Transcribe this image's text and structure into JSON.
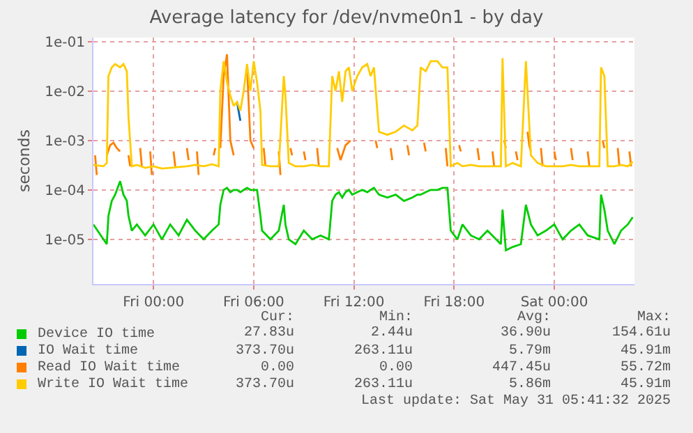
{
  "chart_data": {
    "type": "line",
    "title": "Average latency for /dev/nvme0n1 - by day",
    "ylabel": "seconds",
    "x": [
      "2025-05-29T20:24",
      "2025-05-29T21:00",
      "2025-05-29T21:12",
      "2025-05-29T21:18",
      "2025-05-29T21:30",
      "2025-05-29T21:42",
      "2025-05-29T22:00",
      "2025-05-29T22:12",
      "2025-05-29T22:24",
      "2025-05-29T22:30",
      "2025-05-29T22:42",
      "2025-05-29T23:00",
      "2025-05-29T23:30",
      "2025-05-30T00:00",
      "2025-05-30T00:30",
      "2025-05-30T01:00",
      "2025-05-30T01:30",
      "2025-05-30T02:00",
      "2025-05-30T02:30",
      "2025-05-30T03:00",
      "2025-05-30T03:30",
      "2025-05-30T03:54",
      "2025-05-30T04:00",
      "2025-05-30T04:12",
      "2025-05-30T04:24",
      "2025-05-30T04:36",
      "2025-05-30T04:48",
      "2025-05-30T05:00",
      "2025-05-30T05:12",
      "2025-05-30T05:24",
      "2025-05-30T05:36",
      "2025-05-30T05:48",
      "2025-05-30T06:00",
      "2025-05-30T06:12",
      "2025-05-30T06:24",
      "2025-05-30T06:30",
      "2025-05-30T07:00",
      "2025-05-30T07:30",
      "2025-05-30T07:48",
      "2025-05-30T07:54",
      "2025-05-30T08:06",
      "2025-05-30T08:30",
      "2025-05-30T09:00",
      "2025-05-30T09:30",
      "2025-05-30T10:00",
      "2025-05-30T10:30",
      "2025-05-30T10:42",
      "2025-05-30T10:54",
      "2025-05-30T11:06",
      "2025-05-30T11:18",
      "2025-05-30T11:30",
      "2025-05-30T11:42",
      "2025-05-30T11:54",
      "2025-05-30T12:12",
      "2025-05-30T12:30",
      "2025-05-30T12:48",
      "2025-05-30T13:00",
      "2025-05-30T13:12",
      "2025-05-30T13:30",
      "2025-05-30T14:00",
      "2025-05-30T14:30",
      "2025-05-30T15:00",
      "2025-05-30T15:30",
      "2025-05-30T15:48",
      "2025-05-30T16:00",
      "2025-05-30T16:18",
      "2025-05-30T16:36",
      "2025-05-30T17:00",
      "2025-05-30T17:18",
      "2025-05-30T17:36",
      "2025-05-30T17:48",
      "2025-05-30T18:12",
      "2025-05-30T18:30",
      "2025-05-30T19:00",
      "2025-05-30T19:30",
      "2025-05-30T20:00",
      "2025-05-30T20:48",
      "2025-05-30T20:54",
      "2025-05-30T21:06",
      "2025-05-30T21:30",
      "2025-05-30T22:00",
      "2025-05-30T22:18",
      "2025-05-30T22:36",
      "2025-05-30T23:00",
      "2025-05-30T23:30",
      "2025-05-31T00:00",
      "2025-05-31T00:30",
      "2025-05-31T01:00",
      "2025-05-31T01:30",
      "2025-05-31T02:00",
      "2025-05-31T02:42",
      "2025-05-31T02:48",
      "2025-05-31T03:00",
      "2025-05-31T03:12",
      "2025-05-31T03:36",
      "2025-05-31T04:00",
      "2025-05-31T04:24",
      "2025-05-31T04:42"
    ],
    "series": [
      {
        "name": "Device IO time",
        "color": "#00cc00",
        "values": [
          2e-05,
          1e-05,
          8e-06,
          3e-05,
          6e-05,
          8e-05,
          0.00015,
          8e-05,
          6e-05,
          3e-05,
          1.5e-05,
          2e-05,
          1.2e-05,
          2e-05,
          1e-05,
          2e-05,
          1.2e-05,
          2.5e-05,
          1.5e-05,
          1e-05,
          1.5e-05,
          2e-05,
          5e-05,
          0.0001,
          0.00011,
          9e-05,
          0.0001,
          0.0001,
          9e-05,
          0.0001,
          0.00011,
          0.0001,
          0.0001,
          0.0001,
          3e-05,
          1.5e-05,
          1e-05,
          1.5e-05,
          5e-05,
          2e-05,
          1e-05,
          8e-06,
          1.5e-05,
          1e-05,
          1.2e-05,
          1e-05,
          6e-05,
          8e-05,
          9e-05,
          7e-05,
          9e-05,
          0.0001,
          8e-05,
          9e-05,
          0.0001,
          9e-05,
          0.0001,
          0.00011,
          8e-05,
          7e-05,
          8e-05,
          6e-05,
          7e-05,
          8e-05,
          8e-05,
          9e-05,
          0.0001,
          0.0001,
          0.00011,
          0.00011,
          1.5e-05,
          1e-05,
          2e-05,
          1.2e-05,
          1e-05,
          1.5e-05,
          8e-06,
          4e-05,
          6e-06,
          7e-06,
          8e-06,
          5e-05,
          2e-05,
          1.2e-05,
          1.5e-05,
          2e-05,
          1e-05,
          1.5e-05,
          2e-05,
          1.2e-05,
          1e-05,
          8e-05,
          4e-05,
          1.5e-05,
          8e-06,
          1.5e-05,
          2e-05,
          2.8e-05
        ]
      },
      {
        "name": "IO Wait time",
        "color": "#0066b3",
        "values": [
          null,
          null,
          null,
          null,
          null,
          null,
          null,
          null,
          null,
          null,
          null,
          null,
          null,
          null,
          null,
          null,
          null,
          null,
          null,
          null,
          null,
          null,
          null,
          null,
          null,
          null,
          null,
          0.006,
          0.0025,
          null,
          null,
          null,
          null,
          null,
          null,
          null,
          null,
          null,
          null,
          null,
          null,
          null,
          null,
          null,
          null,
          null,
          null,
          null,
          null,
          null,
          null,
          null,
          null,
          null,
          null,
          null,
          null,
          null,
          null,
          null,
          null,
          null,
          null,
          null,
          null,
          null,
          null,
          null,
          null,
          null,
          null,
          null,
          null,
          null,
          null,
          null,
          null,
          null,
          null,
          null,
          null,
          null,
          null,
          null,
          null,
          null,
          null,
          null,
          null,
          null,
          null,
          null,
          null,
          null,
          null,
          null,
          null,
          null
        ]
      },
      {
        "name": "Read IO Wait time",
        "color": "#ff8000",
        "x": [
          "2025-05-29T20:30",
          "2025-05-29T20:36",
          "2025-05-29T20:54",
          "2025-05-29T21:12",
          "2025-05-29T21:24",
          "2025-05-29T21:36",
          "2025-05-29T21:48",
          "2025-05-29T22:00",
          "2025-05-29T22:12",
          "2025-05-29T22:30",
          "2025-05-29T22:36",
          "2025-05-29T22:54",
          "2025-05-29T23:12",
          "2025-05-29T23:18",
          "2025-05-29T23:30",
          "2025-05-29T23:48",
          "2025-05-29T23:54",
          "2025-05-30T00:30",
          "2025-05-30T01:12",
          "2025-05-30T01:18",
          "2025-05-30T01:36",
          "2025-05-30T02:00",
          "2025-05-30T02:06",
          "2025-05-30T02:18",
          "2025-05-30T02:36",
          "2025-05-30T02:42",
          "2025-05-30T03:06",
          "2025-05-30T03:36",
          "2025-05-30T03:42",
          "2025-05-30T03:54",
          "2025-05-30T04:00",
          "2025-05-30T04:12",
          "2025-05-30T04:24",
          "2025-05-30T04:36",
          "2025-05-30T04:48",
          "2025-05-30T05:06",
          "2025-05-30T05:36",
          "2025-05-30T05:48",
          "2025-05-30T06:00",
          "2025-05-30T06:18",
          "2025-05-30T06:36",
          "2025-05-30T06:42",
          "2025-05-30T07:00",
          "2025-05-30T07:30",
          "2025-05-30T07:36",
          "2025-05-30T07:54",
          "2025-05-30T08:12",
          "2025-05-30T08:18",
          "2025-05-30T08:36",
          "2025-05-30T09:00",
          "2025-05-30T09:06",
          "2025-05-30T09:24",
          "2025-05-30T09:48",
          "2025-05-30T09:54",
          "2025-05-30T10:30",
          "2025-05-30T11:00",
          "2025-05-30T11:12",
          "2025-05-30T11:30",
          "2025-05-30T11:48",
          "2025-05-30T12:00",
          "2025-05-30T13:18",
          "2025-05-30T13:24",
          "2025-05-30T13:48",
          "2025-05-30T14:12",
          "2025-05-30T14:18",
          "2025-05-30T14:42",
          "2025-05-30T15:12",
          "2025-05-30T15:18",
          "2025-05-30T15:42",
          "2025-05-30T16:12",
          "2025-05-30T16:18",
          "2025-05-30T16:48",
          "2025-05-30T17:30",
          "2025-05-30T17:36",
          "2025-05-30T17:54",
          "2025-05-30T18:18",
          "2025-05-30T18:24",
          "2025-05-30T18:54",
          "2025-05-30T19:24",
          "2025-05-30T19:30",
          "2025-05-30T19:54",
          "2025-05-30T20:18",
          "2025-05-30T20:24",
          "2025-05-30T20:42",
          "2025-05-30T21:00",
          "2025-05-30T21:06",
          "2025-05-30T21:24",
          "2025-05-30T21:42",
          "2025-05-30T21:48",
          "2025-05-30T22:06",
          "2025-05-30T22:24",
          "2025-05-30T22:30",
          "2025-05-30T22:36",
          "2025-05-30T22:54",
          "2025-05-30T23:12",
          "2025-05-30T23:18",
          "2025-05-30T23:36",
          "2025-05-31T00:00",
          "2025-05-31T00:06",
          "2025-05-31T00:30",
          "2025-05-31T01:00",
          "2025-05-31T01:06",
          "2025-05-31T01:30",
          "2025-05-31T02:00",
          "2025-05-31T02:06",
          "2025-05-31T02:30",
          "2025-05-31T02:54",
          "2025-05-31T03:00",
          "2025-05-31T03:24",
          "2025-05-31T03:48",
          "2025-05-31T03:54",
          "2025-05-31T04:12",
          "2025-05-31T04:30",
          "2025-05-31T04:36"
        ],
        "values": [
          0.0005,
          0.0002,
          null,
          0.0005,
          0.0008,
          0.0009,
          0.0007,
          0.0006,
          null,
          0.0005,
          0.0003,
          null,
          0.0007,
          0.0003,
          null,
          0.0006,
          0.0002,
          null,
          0.0006,
          0.0003,
          null,
          0.0007,
          0.0004,
          null,
          0.0006,
          0.0002,
          null,
          0.0005,
          0.0007,
          null,
          0.0007,
          0.02,
          0.055,
          0.001,
          0.0005,
          null,
          0.03,
          0.001,
          0.0007,
          null,
          0.0007,
          0.0003,
          null,
          0.0006,
          0.0002,
          null,
          0.0007,
          0.0005,
          null,
          0.0006,
          0.0004,
          null,
          0.0007,
          0.0003,
          null,
          0.0007,
          0.0004,
          0.0008,
          0.001,
          null,
          0.001,
          0.0007,
          null,
          0.0007,
          0.0004,
          null,
          0.0008,
          0.0005,
          null,
          0.0009,
          0.0006,
          null,
          0.0007,
          0.0003,
          null,
          0.0008,
          0.0006,
          null,
          0.0007,
          0.0004,
          null,
          0.0006,
          0.0003,
          null,
          0.001,
          0.0007,
          null,
          0.0006,
          0.0004,
          null,
          0.0015,
          0.0008,
          0.0006,
          null,
          0.0007,
          0.0003,
          null,
          0.0006,
          0.0004,
          null,
          0.0007,
          0.0004,
          null,
          0.0006,
          0.0003,
          null,
          0.001,
          0.0007,
          null,
          0.0007,
          0.0003,
          null,
          0.0006,
          0.0003
        ]
      },
      {
        "name": "Write IO Wait time",
        "color": "#ffcc00",
        "values": [
          0.00032,
          0.0003,
          0.00035,
          0.02,
          0.03,
          0.035,
          0.03,
          0.035,
          0.025,
          0.003,
          0.0003,
          0.00032,
          0.00028,
          0.0003,
          0.00027,
          0.00028,
          0.00029,
          0.0003,
          0.00032,
          0.0003,
          0.00033,
          0.0003,
          0.01,
          0.04,
          0.015,
          0.008,
          0.005,
          0.006,
          0.004,
          0.01,
          0.035,
          0.01,
          0.04,
          0.015,
          0.004,
          0.00032,
          0.0003,
          0.0003,
          0.02,
          0.008,
          0.00035,
          0.0003,
          0.0003,
          0.00032,
          0.0003,
          0.0003,
          0.02,
          0.01,
          0.025,
          0.006,
          0.025,
          0.03,
          0.01,
          0.02,
          0.03,
          0.035,
          0.02,
          0.03,
          0.0015,
          0.0013,
          0.0015,
          0.002,
          0.0016,
          0.002,
          0.03,
          0.025,
          0.04,
          0.04,
          0.03,
          0.03,
          0.0003,
          0.00035,
          0.0003,
          0.00032,
          0.0003,
          0.0003,
          0.0003,
          0.046,
          0.0003,
          0.00035,
          0.0003,
          0.04,
          0.0005,
          0.00035,
          0.0003,
          0.0003,
          0.0003,
          0.00032,
          0.0003,
          0.0003,
          0.0003,
          0.03,
          0.02,
          0.0003,
          0.0003,
          0.00032,
          0.0003,
          0.00037
        ]
      }
    ],
    "xlim": [
      "2025-05-29T20:24",
      "2025-05-31T04:48"
    ],
    "xticks": [
      {
        "value": "2025-05-30T00:00",
        "label": "Fri 00:00"
      },
      {
        "value": "2025-05-30T06:00",
        "label": "Fri 06:00"
      },
      {
        "value": "2025-05-30T12:00",
        "label": "Fri 12:00"
      },
      {
        "value": "2025-05-30T18:00",
        "label": "Fri 18:00"
      },
      {
        "value": "2025-05-31T00:00",
        "label": "Sat 00:00"
      }
    ],
    "ylim": [
      1.25e-06,
      0.12
    ],
    "yticks": [
      {
        "value": 1e-05,
        "label": "1e-05"
      },
      {
        "value": 0.0001,
        "label": "1e-04"
      },
      {
        "value": 0.001,
        "label": "1e-03"
      },
      {
        "value": 0.01,
        "label": "1e-02"
      },
      {
        "value": 0.1,
        "label": "1e-01"
      }
    ],
    "log": "y",
    "grid": true,
    "legend": "bottom left",
    "annotations": [
      "Cur:",
      "Min:",
      "Avg:",
      "Max:",
      "27.83u",
      "2.44u",
      "36.90u",
      "154.61u",
      "373.70u",
      "263.11u",
      "5.79m",
      "45.91m",
      "0.00",
      "0.00",
      "447.45u",
      "55.72m",
      "373.70u",
      "263.11u",
      "5.86m",
      "45.91m",
      "Last update: Sat May 31 05:41:32 2025"
    ]
  }
}
